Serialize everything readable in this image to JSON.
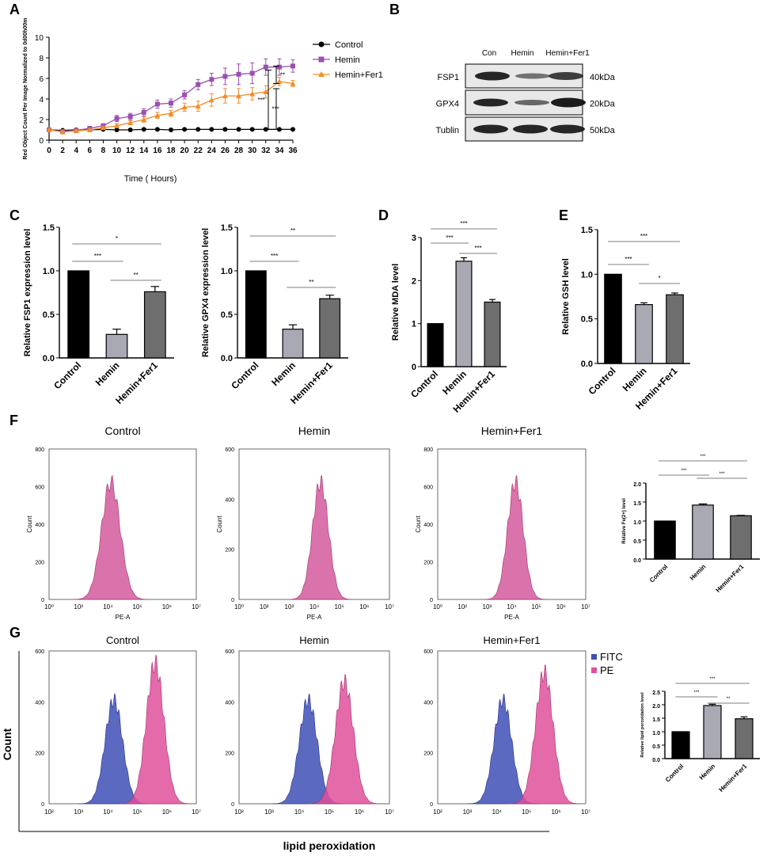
{
  "colors": {
    "control": "#000000",
    "hemin": "#9b4fb0",
    "fer1": "#f28c28",
    "bar_control": "#000000",
    "bar_hemin": "#a9a9b3",
    "bar_fer1": "#6e6e6e",
    "fitc": "#3f4fb5",
    "pe": "#e0509a",
    "flow_pink": "#d35a9c"
  },
  "panels": {
    "A": "A",
    "B": "B",
    "C": "C",
    "D": "D",
    "E": "E",
    "F": "F",
    "G": "G"
  },
  "chart_data": [
    {
      "id": "A",
      "type": "line",
      "title": "",
      "xlabel": "Time ( Hours)",
      "ylabel": "Red Object Count Per Image Normalized to 0d00h00m",
      "x": [
        0,
        2,
        4,
        6,
        8,
        10,
        12,
        14,
        16,
        18,
        20,
        22,
        24,
        26,
        28,
        30,
        32,
        34,
        36
      ],
      "xlim": [
        0,
        36
      ],
      "ylim": [
        0,
        10
      ],
      "yticks": [
        0,
        2,
        4,
        6,
        8,
        10
      ],
      "legend_position": "right",
      "series": [
        {
          "name": "Control",
          "values": [
            1,
            0.95,
            1,
            1,
            1.05,
            1,
            1,
            1.05,
            1.05,
            1,
            1.05,
            1.05,
            1.05,
            1.05,
            1.05,
            1.05,
            1.05,
            1.05,
            1.05
          ],
          "errors": [
            0.05,
            0.05,
            0.05,
            0.05,
            0.05,
            0.05,
            0.05,
            0.05,
            0.05,
            0.05,
            0.05,
            0.05,
            0.05,
            0.05,
            0.05,
            0.05,
            0.05,
            0.05,
            0.05
          ]
        },
        {
          "name": "Hemin",
          "values": [
            1,
            0.85,
            0.95,
            1.15,
            1.4,
            2.1,
            2.3,
            2.7,
            3.5,
            3.6,
            4.4,
            5.4,
            5.9,
            6.2,
            6.4,
            6.5,
            7.1,
            7.1,
            7.2
          ],
          "errors": [
            0.1,
            0.1,
            0.1,
            0.15,
            0.2,
            0.3,
            0.3,
            0.35,
            0.4,
            0.4,
            0.4,
            0.5,
            0.6,
            0.8,
            1.0,
            1.0,
            0.8,
            0.8,
            0.6
          ]
        },
        {
          "name": "Hemin+Fer1",
          "values": [
            1,
            0.8,
            0.9,
            1.0,
            1.2,
            1.4,
            1.7,
            2.0,
            2.4,
            2.6,
            3.2,
            3.3,
            3.9,
            4.3,
            4.3,
            4.5,
            4.7,
            5.7,
            5.5
          ],
          "errors": [
            0.1,
            0.1,
            0.1,
            0.1,
            0.15,
            0.2,
            0.2,
            0.25,
            0.3,
            0.3,
            0.4,
            0.5,
            0.6,
            0.7,
            0.7,
            0.6,
            0.6,
            0.4,
            0.3
          ]
        }
      ],
      "significance": [
        "***",
        "**",
        "***"
      ]
    },
    {
      "id": "C1",
      "type": "bar",
      "ylabel": "Relative FSP1 expression level",
      "categories": [
        "Control",
        "Hemin",
        "Hemin+Fer1"
      ],
      "values": [
        1.0,
        0.27,
        0.76
      ],
      "errors": [
        0,
        0.06,
        0.06
      ],
      "ylim": [
        0,
        1.5
      ],
      "yticks": [
        0.0,
        0.5,
        1.0,
        1.5
      ],
      "significance": [
        "*",
        "***",
        "**"
      ]
    },
    {
      "id": "C2",
      "type": "bar",
      "ylabel": "Relative GPX4 expression level",
      "categories": [
        "Control",
        "Hemin",
        "Hemin+Fer1"
      ],
      "values": [
        1.0,
        0.33,
        0.68
      ],
      "errors": [
        0,
        0.05,
        0.04
      ],
      "ylim": [
        0,
        1.5
      ],
      "yticks": [
        0.0,
        0.5,
        1.0,
        1.5
      ],
      "significance": [
        "**",
        "***",
        "**"
      ]
    },
    {
      "id": "D",
      "type": "bar",
      "ylabel": "Relative MDA level",
      "categories": [
        "Control",
        "Hemin",
        "Hemin+Fer1"
      ],
      "values": [
        1.0,
        2.45,
        1.5
      ],
      "errors": [
        0,
        0.08,
        0.06
      ],
      "ylim": [
        0,
        3
      ],
      "yticks": [
        0,
        1,
        2,
        3
      ],
      "significance": [
        "***",
        "***",
        "***"
      ]
    },
    {
      "id": "E",
      "type": "bar",
      "ylabel": "Relative GSH level",
      "categories": [
        "Control",
        "Hemin",
        "Hemin+Fer1"
      ],
      "values": [
        1.0,
        0.66,
        0.77
      ],
      "errors": [
        0,
        0.02,
        0.02
      ],
      "ylim": [
        0,
        1.5
      ],
      "yticks": [
        0.0,
        0.5,
        1.0,
        1.5
      ],
      "significance": [
        "***",
        "***",
        "*"
      ]
    },
    {
      "id": "F4",
      "type": "bar",
      "ylabel": "Relative Fe(2+) level",
      "categories": [
        "Control",
        "Hemin",
        "Hemin+Fer1"
      ],
      "values": [
        1.0,
        1.42,
        1.14
      ],
      "errors": [
        0,
        0.03,
        0.01
      ],
      "ylim": [
        0,
        2.0
      ],
      "yticks": [
        0.0,
        0.5,
        1.0,
        1.5,
        2.0
      ],
      "significance": [
        "***",
        "***",
        "***"
      ]
    },
    {
      "id": "G4",
      "type": "bar",
      "ylabel": "Relative lipid peroxidation level",
      "categories": [
        "Control",
        "Hemin",
        "Hemin+Fer1"
      ],
      "values": [
        1.0,
        1.97,
        1.48
      ],
      "errors": [
        0,
        0.05,
        0.07
      ],
      "ylim": [
        0,
        2.5
      ],
      "yticks": [
        0.0,
        0.5,
        1.0,
        1.5,
        2.0,
        2.5
      ],
      "significance": [
        "***",
        "***",
        "**"
      ]
    },
    {
      "id": "F_flow",
      "type": "area",
      "titles": [
        "Control",
        "Hemin",
        "Hemin+Fer1"
      ],
      "xlabel": "PE-A",
      "ylabel": "Count",
      "yticks": [
        "0",
        "200",
        "400",
        "600",
        "800"
      ],
      "ytick_variants": [
        [
          "0",
          "200",
          "400",
          "600",
          "800"
        ],
        [
          "0",
          "200",
          "400",
          "600"
        ],
        [
          "0",
          "200",
          "400",
          "600",
          "800"
        ]
      ],
      "xticks": [
        "10⁰",
        "10³",
        "10⁴",
        "10⁵",
        "10⁶",
        "10⁷"
      ],
      "xticks_full": [
        "10⁰",
        "10²",
        "10³",
        "10⁴",
        "10⁵",
        "10⁶",
        "10⁷"
      ],
      "peaks_log10": [
        4.1,
        4.25,
        4.15
      ]
    },
    {
      "id": "G_flow",
      "type": "area",
      "titles": [
        "Control",
        "Hemin",
        "Hemin+Fer1"
      ],
      "xlabel": "lipid peroxidation",
      "ylabel": "Count",
      "yticks": [
        "0",
        "200",
        "400",
        "600"
      ],
      "xticks": [
        "10²",
        "10³",
        "10⁴",
        "10⁵",
        "10⁶",
        "10⁷"
      ],
      "legend": [
        "FITC",
        "PE"
      ],
      "fitc_peaks_log10": [
        4.2,
        4.3,
        4.2
      ],
      "pe_peaks_log10": [
        5.6,
        5.5,
        5.6
      ]
    }
  ],
  "western": {
    "lanes": [
      "Con",
      "Hemin",
      "Hemin+Fer1"
    ],
    "rows": [
      {
        "label": "FSP1",
        "size": "40kDa"
      },
      {
        "label": "GPX4",
        "size": "20kDa"
      },
      {
        "label": "Tublin",
        "size": "50kDa"
      }
    ]
  }
}
